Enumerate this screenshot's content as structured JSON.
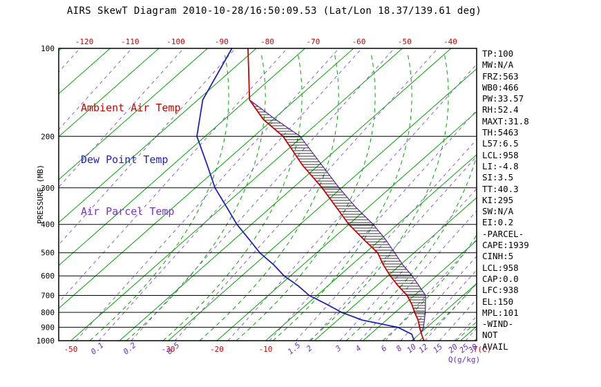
{
  "legend": {
    "ambient": "Ambient Air Temp",
    "dew_point": "Dew Point Temp",
    "air_parcel": "Air Parcel Temp"
  },
  "stats_panel": [
    "TP:100",
    "MW:N/A",
    "FRZ:563",
    "WB0:466",
    "PW:33.57",
    "RH:52.4",
    "MAXT:31.8",
    "TH:5463",
    "L57:6.5",
    "LCL:958",
    "LI:-4.8",
    "SI:3.5",
    "TT:40.3",
    "KI:295",
    "SW:N/A",
    "EI:0.2",
    "-PARCEL-",
    "CAPE:1939",
    "CINH:5",
    "LCL:958",
    "CAP:0.0",
    "LFC:938",
    "EL:150",
    "MPL:101",
    "-WIND-",
    "NOT",
    "AVAIL"
  ],
  "colors": {
    "isotherm": "#00a500",
    "moist_adiabat": "#00a500",
    "mixing_ratio_line": "#8a5fd0",
    "ambient": "#cc0000",
    "dew_point": "#2222bb",
    "parcel": "#552299",
    "axis": "#000000",
    "top_tick_labels": "#cc0000",
    "mixing_ratio_labels": "#6633cc"
  },
  "chart_data": {
    "type": "line",
    "title": "AIRS SkewT Diagram 2010-10-28/16:50:09.53 (Lat/Lon 18.37/139.61 deg)",
    "y_axis": {
      "label": "PRESSURE (MB)",
      "scale": "log",
      "ticks_mb": [
        100,
        200,
        300,
        400,
        500,
        600,
        700,
        800,
        900,
        1000
      ],
      "range_mb": [
        100,
        1000
      ]
    },
    "x_axis": {
      "label": "T(C)",
      "top_ticks_c": [
        -120,
        -110,
        -100,
        -90,
        -80,
        -70,
        -60,
        -50,
        -40
      ],
      "bottom_ticks_c": [
        -50,
        -30,
        -20,
        -10
      ]
    },
    "mixing_ratio_axis": {
      "label": "Q(g/kg)",
      "ticks_g_kg": [
        0.1,
        0.2,
        0.5,
        1.5,
        2,
        3,
        4,
        6,
        8,
        10,
        12,
        15,
        20,
        25,
        30
      ]
    },
    "grid": {
      "isotherms_c": {
        "from": -150,
        "to": 40,
        "step": 10
      },
      "pressure_lines_mb": [
        100,
        200,
        300,
        400,
        500,
        600,
        700,
        800,
        900,
        1000
      ]
    },
    "series": [
      {
        "name": "Ambient Air Temp",
        "color": "#cc0000",
        "points_p_t": [
          [
            100,
            -81.7
          ],
          [
            150,
            -69.4
          ],
          [
            175,
            -62
          ],
          [
            200,
            -54
          ],
          [
            250,
            -43.5
          ],
          [
            300,
            -34
          ],
          [
            350,
            -26.5
          ],
          [
            400,
            -20
          ],
          [
            450,
            -13.5
          ],
          [
            500,
            -7.5
          ],
          [
            550,
            -3.5
          ],
          [
            600,
            0.5
          ],
          [
            650,
            4.5
          ],
          [
            700,
            8.5
          ],
          [
            750,
            11.5
          ],
          [
            800,
            14
          ],
          [
            850,
            16.5
          ],
          [
            900,
            18.5
          ],
          [
            925,
            19.5
          ],
          [
            950,
            20.5
          ],
          [
            1000,
            22.5
          ]
        ]
      },
      {
        "name": "Dew Point Temp",
        "color": "#2222bb",
        "points_p_t": [
          [
            100,
            -85
          ],
          [
            150,
            -79
          ],
          [
            200,
            -71.7
          ],
          [
            250,
            -63
          ],
          [
            300,
            -56
          ],
          [
            350,
            -49
          ],
          [
            400,
            -43
          ],
          [
            450,
            -37
          ],
          [
            500,
            -31.7
          ],
          [
            550,
            -26
          ],
          [
            600,
            -21.3
          ],
          [
            650,
            -16
          ],
          [
            700,
            -11.6
          ],
          [
            750,
            -6
          ],
          [
            800,
            -1
          ],
          [
            850,
            5
          ],
          [
            900,
            14
          ],
          [
            950,
            18.5
          ],
          [
            1000,
            20.5
          ]
        ]
      },
      {
        "name": "Air Parcel Temp",
        "color": "#552299",
        "points_p_t": [
          [
            150,
            -69.4
          ],
          [
            175,
            -59.5
          ],
          [
            200,
            -50.5
          ],
          [
            250,
            -39.5
          ],
          [
            300,
            -30.5
          ],
          [
            350,
            -22.5
          ],
          [
            400,
            -15
          ],
          [
            450,
            -9
          ],
          [
            500,
            -4
          ],
          [
            550,
            0.5
          ],
          [
            600,
            5
          ],
          [
            650,
            8.8
          ],
          [
            700,
            12.3
          ],
          [
            750,
            14.3
          ],
          [
            800,
            16.2
          ],
          [
            850,
            17.8
          ],
          [
            900,
            19.3
          ],
          [
            938,
            20.1
          ]
        ]
      }
    ],
    "cape_region": {
      "between": [
        "Ambient Air Temp",
        "Air Parcel Temp"
      ],
      "pressure_range_mb": [
        938,
        150
      ],
      "hatch": "horizontal"
    }
  }
}
